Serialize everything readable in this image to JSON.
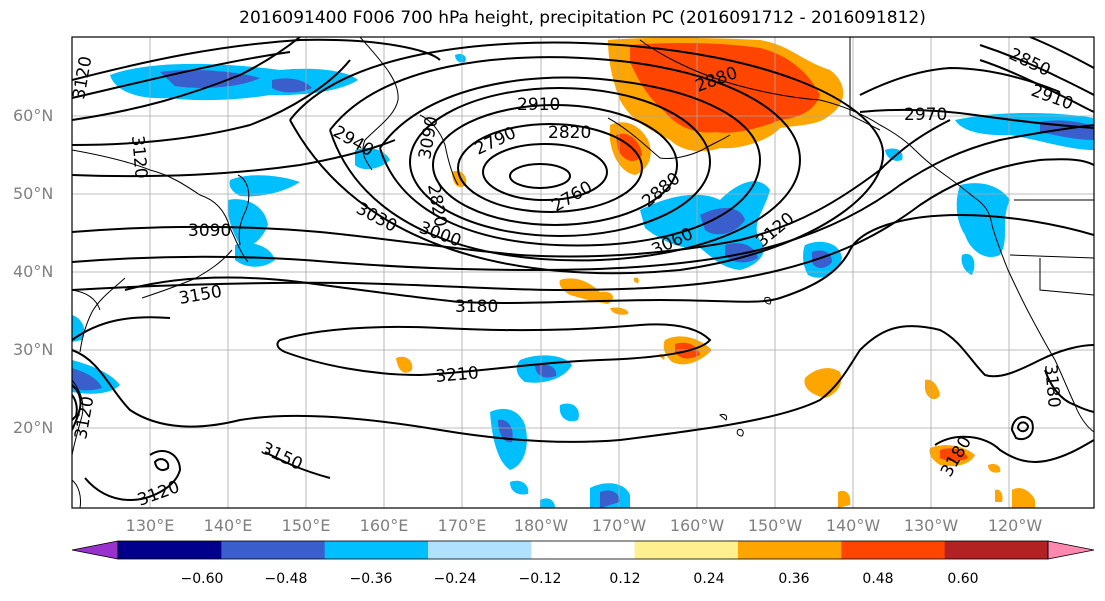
{
  "title": "2016091400 F006 700 hPa height, precipitation PC (2016091712 - 2016091812)",
  "lat_labels": [
    "60°N",
    "50°N",
    "40°N",
    "30°N",
    "20°N"
  ],
  "lon_labels": [
    "130°E",
    "140°E",
    "150°E",
    "160°E",
    "170°E",
    "180°W",
    "170°W",
    "160°W",
    "150°W",
    "140°W",
    "130°W",
    "120°W"
  ],
  "colorbar": {
    "ticks": [
      "−0.60",
      "−0.48",
      "−0.36",
      "−0.24",
      "−0.12",
      "0.12",
      "0.24",
      "0.36",
      "0.48",
      "0.60"
    ],
    "colors": [
      "#9932cc",
      "#00008b",
      "#3a5fcd",
      "#00bfff",
      "#b0e2ff",
      "#ffffff",
      "#fff08f",
      "#ffa500",
      "#ff4500",
      "#b22222",
      "#ff88b0"
    ]
  },
  "contour_labels": [
    "3120",
    "3090",
    "2940",
    "2910",
    "2790",
    "2820",
    "2880",
    "2880",
    "2970",
    "2850",
    "2910",
    "3030",
    "3000",
    "2760",
    "3060",
    "3120",
    "3090",
    "3150",
    "3180",
    "3210",
    "3150",
    "3120",
    "3120",
    "3180",
    "3180",
    "2820",
    "3120"
  ]
}
